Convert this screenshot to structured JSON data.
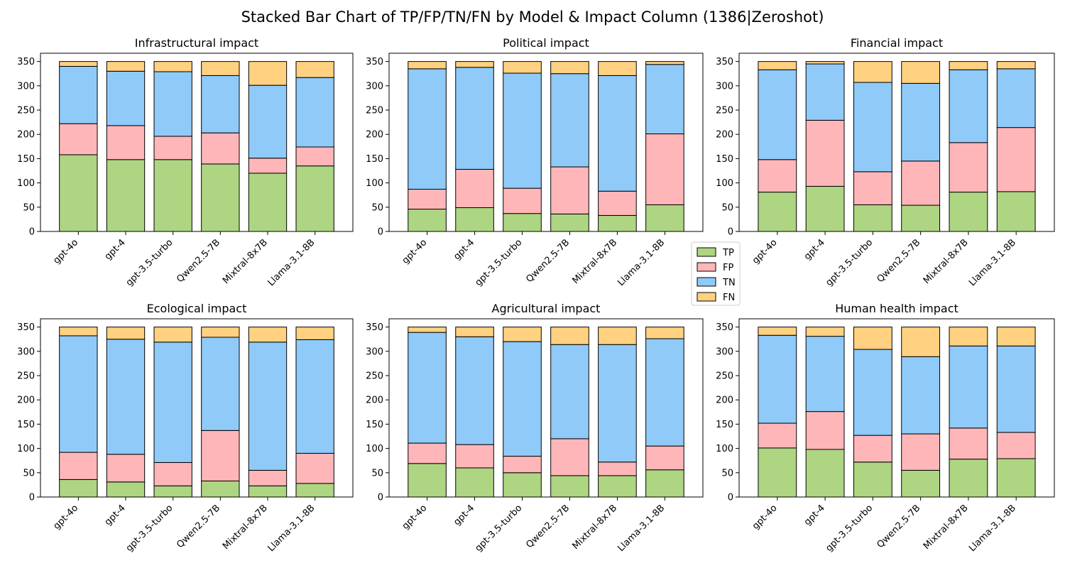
{
  "figure": {
    "title": "Stacked Bar Chart of TP/FP/TN/FN by Model & Impact Column (1386|Zeroshot)"
  },
  "colors": {
    "TP": "#aed581",
    "FP": "#ffb6b9",
    "TN": "#90caf9",
    "FN": "#ffd180"
  },
  "legend": {
    "placement": "center-right",
    "items": [
      "TP",
      "FP",
      "TN",
      "FN"
    ]
  },
  "chart_data": [
    {
      "type": "bar",
      "stacked": true,
      "title": "Infrastructural impact",
      "categories": [
        "gpt-4o",
        "gpt-4",
        "gpt-3.5-turbo",
        "Qwen2.5-7B",
        "Mixtral-8x7B",
        "Llama-3.1-8B"
      ],
      "ylim": [
        0,
        367
      ],
      "yticks": [
        0,
        50,
        100,
        150,
        200,
        250,
        300,
        350
      ],
      "series": [
        {
          "name": "TP",
          "values": [
            158,
            148,
            148,
            139,
            120,
            135
          ]
        },
        {
          "name": "FP",
          "values": [
            64,
            70,
            48,
            64,
            31,
            39
          ]
        },
        {
          "name": "TN",
          "values": [
            118,
            112,
            133,
            118,
            150,
            143
          ]
        },
        {
          "name": "FN",
          "values": [
            10,
            20,
            21,
            29,
            49,
            33
          ]
        }
      ]
    },
    {
      "type": "bar",
      "stacked": true,
      "title": "Political impact",
      "categories": [
        "gpt-4o",
        "gpt-4",
        "gpt-3.5-turbo",
        "Qwen2.5-7B",
        "Mixtral-8x7B",
        "Llama-3.1-8B"
      ],
      "ylim": [
        0,
        367
      ],
      "yticks": [
        0,
        50,
        100,
        150,
        200,
        250,
        300,
        350
      ],
      "series": [
        {
          "name": "TP",
          "values": [
            46,
            49,
            37,
            36,
            33,
            55
          ]
        },
        {
          "name": "FP",
          "values": [
            41,
            79,
            52,
            97,
            50,
            146
          ]
        },
        {
          "name": "TN",
          "values": [
            248,
            210,
            237,
            192,
            238,
            143
          ]
        },
        {
          "name": "FN",
          "values": [
            15,
            12,
            24,
            25,
            29,
            6
          ]
        }
      ]
    },
    {
      "type": "bar",
      "stacked": true,
      "title": "Financial impact",
      "categories": [
        "gpt-4o",
        "gpt-4",
        "gpt-3.5-turbo",
        "Qwen2.5-7B",
        "Mixtral-8x7B",
        "Llama-3.1-8B"
      ],
      "ylim": [
        0,
        367
      ],
      "yticks": [
        0,
        50,
        100,
        150,
        200,
        250,
        300,
        350
      ],
      "series": [
        {
          "name": "TP",
          "values": [
            81,
            93,
            55,
            54,
            81,
            82
          ]
        },
        {
          "name": "FP",
          "values": [
            67,
            136,
            68,
            91,
            102,
            132
          ]
        },
        {
          "name": "TN",
          "values": [
            185,
            116,
            184,
            160,
            150,
            121
          ]
        },
        {
          "name": "FN",
          "values": [
            17,
            5,
            43,
            45,
            17,
            15
          ]
        }
      ]
    },
    {
      "type": "bar",
      "stacked": true,
      "title": "Ecological impact",
      "categories": [
        "gpt-4o",
        "gpt-4",
        "gpt-3.5-turbo",
        "Qwen2.5-7B",
        "Mixtral-8x7B",
        "Llama-3.1-8B"
      ],
      "ylim": [
        0,
        367
      ],
      "yticks": [
        0,
        50,
        100,
        150,
        200,
        250,
        300,
        350
      ],
      "series": [
        {
          "name": "TP",
          "values": [
            36,
            31,
            23,
            33,
            23,
            28
          ]
        },
        {
          "name": "FP",
          "values": [
            56,
            57,
            48,
            104,
            32,
            62
          ]
        },
        {
          "name": "TN",
          "values": [
            240,
            237,
            248,
            192,
            264,
            234
          ]
        },
        {
          "name": "FN",
          "values": [
            18,
            25,
            31,
            21,
            31,
            26
          ]
        }
      ]
    },
    {
      "type": "bar",
      "stacked": true,
      "title": "Agricultural impact",
      "categories": [
        "gpt-4o",
        "gpt-4",
        "gpt-3.5-turbo",
        "Qwen2.5-7B",
        "Mixtral-8x7B",
        "Llama-3.1-8B"
      ],
      "ylim": [
        0,
        367
      ],
      "yticks": [
        0,
        50,
        100,
        150,
        200,
        250,
        300,
        350
      ],
      "series": [
        {
          "name": "TP",
          "values": [
            69,
            60,
            50,
            44,
            44,
            56
          ]
        },
        {
          "name": "FP",
          "values": [
            42,
            48,
            34,
            76,
            28,
            49
          ]
        },
        {
          "name": "TN",
          "values": [
            228,
            222,
            236,
            194,
            242,
            221
          ]
        },
        {
          "name": "FN",
          "values": [
            11,
            20,
            30,
            36,
            36,
            24
          ]
        }
      ]
    },
    {
      "type": "bar",
      "stacked": true,
      "title": "Human health impact",
      "categories": [
        "gpt-4o",
        "gpt-4",
        "gpt-3.5-turbo",
        "Qwen2.5-7B",
        "Mixtral-8x7B",
        "Llama-3.1-8B"
      ],
      "ylim": [
        0,
        367
      ],
      "yticks": [
        0,
        50,
        100,
        150,
        200,
        250,
        300,
        350
      ],
      "series": [
        {
          "name": "TP",
          "values": [
            101,
            98,
            72,
            55,
            78,
            79
          ]
        },
        {
          "name": "FP",
          "values": [
            51,
            78,
            55,
            75,
            64,
            54
          ]
        },
        {
          "name": "TN",
          "values": [
            181,
            155,
            177,
            159,
            169,
            178
          ]
        },
        {
          "name": "FN",
          "values": [
            17,
            19,
            46,
            61,
            39,
            39
          ]
        }
      ]
    }
  ]
}
